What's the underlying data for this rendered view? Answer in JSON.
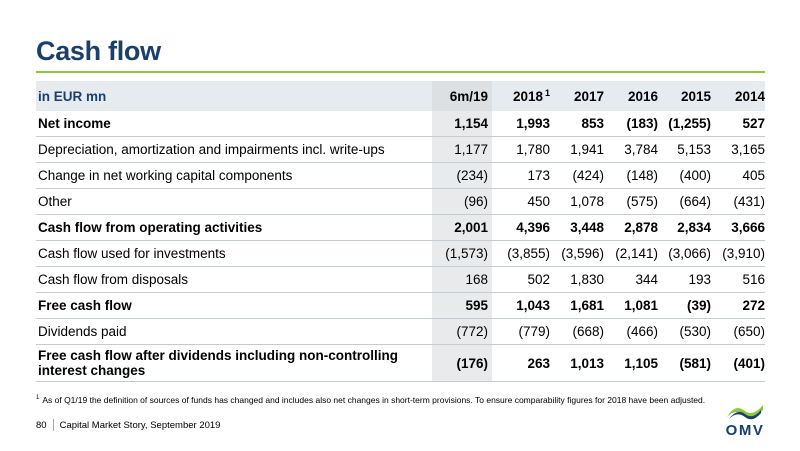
{
  "title": "Cash flow",
  "colors": {
    "title": "#1a3f6b",
    "accent_rule": "#8dc63f",
    "header_bg": "#e6ebf0",
    "highlight_col": "#e8eaec"
  },
  "table": {
    "header_label": "in EUR mn",
    "columns": [
      "6m/19",
      "2018",
      "2017",
      "2016",
      "2015",
      "2014"
    ],
    "column_2018_superscript": "1",
    "rows": [
      {
        "label": "Net income",
        "bold": true,
        "values": [
          "1,154",
          "1,993",
          "853",
          "(183)",
          "(1,255)",
          "527"
        ]
      },
      {
        "label": "Depreciation, amortization and impairments incl. write-ups",
        "bold": false,
        "values": [
          "1,177",
          "1,780",
          "1,941",
          "3,784",
          "5,153",
          "3,165"
        ]
      },
      {
        "label": "Change in net working capital components",
        "bold": false,
        "values": [
          "(234)",
          "173",
          "(424)",
          "(148)",
          "(400)",
          "405"
        ]
      },
      {
        "label": "Other",
        "bold": false,
        "values": [
          "(96)",
          "450",
          "1,078",
          "(575)",
          "(664)",
          "(431)"
        ]
      },
      {
        "label": "Cash flow from operating activities",
        "bold": true,
        "values": [
          "2,001",
          "4,396",
          "3,448",
          "2,878",
          "2,834",
          "3,666"
        ]
      },
      {
        "label": "Cash flow used for investments",
        "bold": false,
        "values": [
          "(1,573)",
          "(3,855)",
          "(3,596)",
          "(2,141)",
          "(3,066)",
          "(3,910)"
        ]
      },
      {
        "label": "Cash flow from disposals",
        "bold": false,
        "values": [
          "168",
          "502",
          "1,830",
          "344",
          "193",
          "516"
        ]
      },
      {
        "label": "Free cash flow",
        "bold": true,
        "values": [
          "595",
          "1,043",
          "1,681",
          "1,081",
          "(39)",
          "272"
        ]
      },
      {
        "label": "Dividends paid",
        "bold": false,
        "values": [
          "(772)",
          "(779)",
          "(668)",
          "(466)",
          "(530)",
          "(650)"
        ]
      },
      {
        "label": "Free cash flow after dividends including non-controlling interest changes",
        "bold": true,
        "values": [
          "(176)",
          "263",
          "1,013",
          "1,105",
          "(581)",
          "(401)"
        ]
      }
    ]
  },
  "footnote": {
    "marker": "1",
    "text": "As of Q1/19 the definition of sources of funds has changed and includes also net changes in short-term provisions. To ensure comparability figures for 2018 have been adjusted."
  },
  "footer": {
    "page_number": "80",
    "deck_name": "Capital Market Story, September 2019"
  },
  "logo": {
    "icon": "omv-logo-icon",
    "text": "OMV"
  }
}
